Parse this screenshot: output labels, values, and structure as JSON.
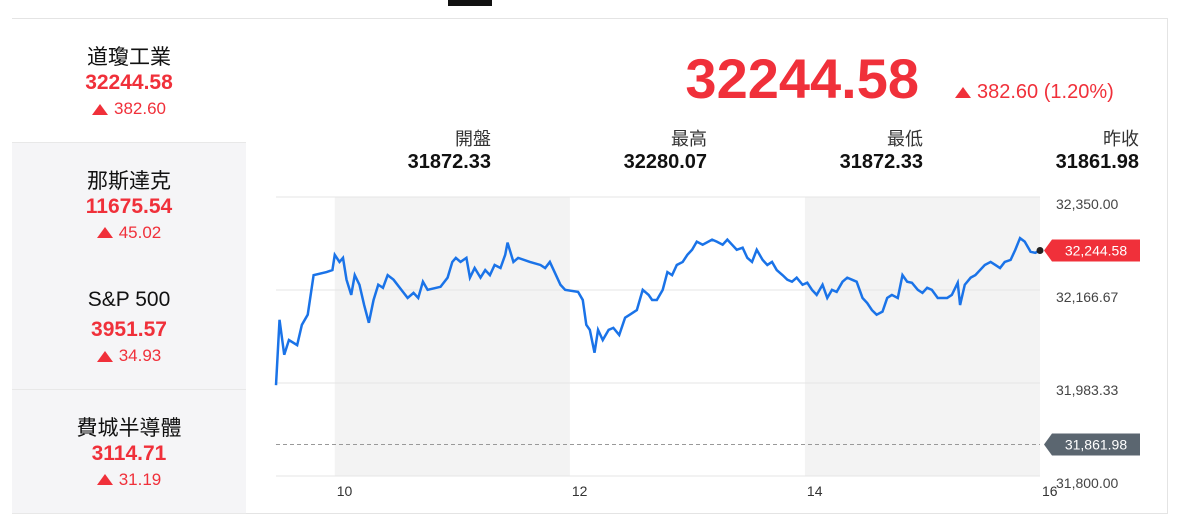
{
  "sidebar": [
    {
      "name": "道瓊工業",
      "price": "32244.58",
      "change": "382.60"
    },
    {
      "name": "那斯達克",
      "price": "11675.54",
      "change": "45.02"
    },
    {
      "name": "S&P 500",
      "price": "3951.57",
      "change": "34.93"
    },
    {
      "name": "費城半導體",
      "price": "3114.71",
      "change": "31.19"
    }
  ],
  "header": {
    "price": "32244.58",
    "change": "382.60 (1.20%)",
    "stats": [
      {
        "label": "開盤",
        "value": "31872.33"
      },
      {
        "label": "最高",
        "value": "32280.07"
      },
      {
        "label": "最低",
        "value": "31872.33"
      },
      {
        "label": "昨收",
        "value": "31861.98"
      }
    ]
  },
  "chart": {
    "type": "line",
    "color": "#1a73e8",
    "x": [
      9.5,
      9.53,
      9.57,
      9.61,
      9.68,
      9.72,
      9.77,
      9.82,
      9.93,
      9.98,
      10.0,
      10.04,
      10.07,
      10.1,
      10.14,
      10.17,
      10.21,
      10.25,
      10.29,
      10.33,
      10.37,
      10.41,
      10.45,
      10.5,
      10.58,
      10.62,
      10.67,
      10.71,
      10.75,
      10.79,
      10.9,
      10.96,
      11.0,
      11.03,
      11.07,
      11.12,
      11.15,
      11.19,
      11.24,
      11.28,
      11.32,
      11.36,
      11.41,
      11.45,
      11.47,
      11.52,
      11.56,
      11.66,
      11.75,
      11.79,
      11.83,
      11.87,
      11.92,
      11.96,
      12.07,
      12.11,
      12.14,
      12.17,
      12.21,
      12.24,
      12.28,
      12.33,
      12.37,
      12.42,
      12.47,
      12.51,
      12.57,
      12.62,
      12.67,
      12.7,
      12.74,
      12.79,
      12.83,
      12.87,
      12.91,
      12.96,
      13.0,
      13.04,
      13.08,
      13.13,
      13.21,
      13.25,
      13.3,
      13.34,
      13.38,
      13.42,
      13.47,
      13.51,
      13.55,
      13.59,
      13.64,
      13.68,
      13.72,
      13.76,
      13.81,
      13.85,
      13.89,
      13.93,
      13.98,
      14.02,
      14.06,
      14.1,
      14.15,
      14.19,
      14.23,
      14.27,
      14.32,
      14.36,
      14.4,
      14.44,
      14.49,
      14.53,
      14.57,
      14.61,
      14.66,
      14.7,
      14.74,
      14.79,
      14.83,
      14.87,
      14.91,
      14.96,
      15.0,
      15.04,
      15.08,
      15.13,
      15.21,
      15.25,
      15.3,
      15.32,
      15.36,
      15.41,
      15.45,
      15.49,
      15.53,
      15.58,
      15.62,
      15.66,
      15.7,
      15.75,
      15.79,
      15.83,
      15.87,
      15.92,
      15.96,
      16.0
    ],
    "values": [
      31979,
      32108,
      32039,
      32068,
      32058,
      32098,
      32118,
      32196,
      32202,
      32206,
      32236,
      32222,
      32230,
      32187,
      32157,
      32196,
      32177,
      32137,
      32102,
      32147,
      32177,
      32171,
      32196,
      32187,
      32163,
      32151,
      32161,
      32151,
      32183,
      32167,
      32173,
      32191,
      32222,
      32230,
      32222,
      32230,
      32191,
      32210,
      32191,
      32206,
      32196,
      32216,
      32210,
      32236,
      32260,
      32222,
      32230,
      32222,
      32216,
      32210,
      32222,
      32202,
      32177,
      32167,
      32163,
      32147,
      32098,
      32088,
      32043,
      32088,
      32068,
      32088,
      32092,
      32078,
      32112,
      32118,
      32127,
      32167,
      32157,
      32147,
      32147,
      32167,
      32202,
      32196,
      32216,
      32222,
      32236,
      32246,
      32262,
      32256,
      32266,
      32262,
      32256,
      32266,
      32256,
      32246,
      32250,
      32230,
      32222,
      32246,
      32226,
      32216,
      32222,
      32206,
      32196,
      32187,
      32183,
      32191,
      32177,
      32181,
      32167,
      32157,
      32177,
      32151,
      32167,
      32163,
      32183,
      32191,
      32187,
      32183,
      32151,
      32141,
      32127,
      32118,
      32124,
      32151,
      32157,
      32151,
      32196,
      32183,
      32181,
      32167,
      32161,
      32171,
      32167,
      32151,
      32151,
      32157,
      32181,
      32137,
      32177,
      32191,
      32196,
      32206,
      32216,
      32222,
      32216,
      32210,
      32222,
      32226,
      32246,
      32269,
      32262,
      32242,
      32240,
      32244.58
    ],
    "xlim": [
      9.5,
      16
    ],
    "xticks": [
      10,
      12,
      14,
      16
    ],
    "ylim": [
      31800,
      32350
    ],
    "yticks": [
      {
        "value": 32350,
        "label": "32,350.00"
      },
      {
        "value": 32166.67,
        "label": "32,166.67"
      },
      {
        "value": 31983.33,
        "label": "31,983.33"
      },
      {
        "value": 31800,
        "label": "31,800.00"
      }
    ],
    "last": {
      "value": 32244.58,
      "label": "32,244.58"
    },
    "prev_close": {
      "value": 31861.98,
      "label": "31,861.98"
    }
  }
}
